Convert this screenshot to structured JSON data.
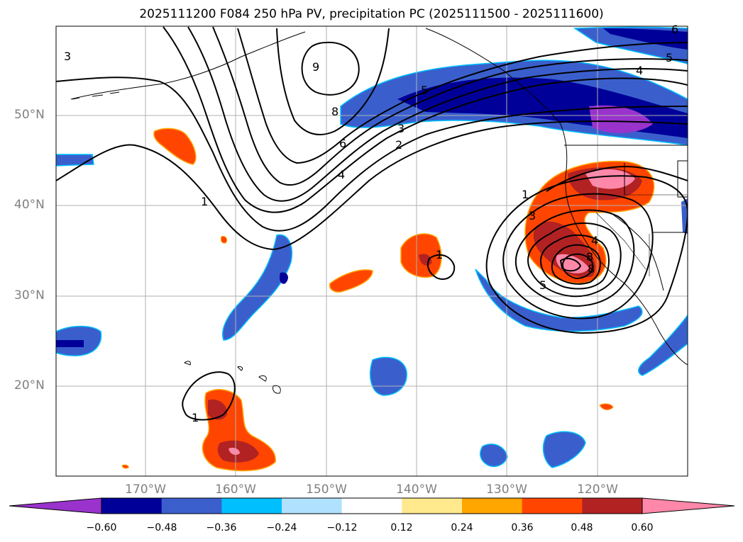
{
  "title": "2025111200 F084 250 hPa PV, precipitation PC (2025111500 - 2025111600)",
  "map": {
    "lat_labels": [
      "50°N",
      "40°N",
      "30°N",
      "20°N"
    ],
    "lon_labels": [
      "170°W",
      "160°W",
      "150°W",
      "140°W",
      "130°W",
      "120°W"
    ],
    "contour_labels": [
      "3",
      "9",
      "8",
      "6",
      "4",
      "3",
      "2",
      "1",
      "1",
      "1",
      "1",
      "5",
      "4",
      "5",
      "6",
      "3",
      "5",
      "8",
      "4",
      "8"
    ],
    "background_color": "#ffffff",
    "coastline_color": "#000000",
    "contour_color": "#000000",
    "grid_color": "#b0b0b0"
  },
  "colorbar": {
    "colors": [
      "#9933cc",
      "#000099",
      "#3a5fcd",
      "#00bfff",
      "#b0e2ff",
      "#ffffff",
      "#ffe98c",
      "#ffa500",
      "#ff4500",
      "#b22222",
      "#ff88aa"
    ],
    "tick_labels": [
      "−0.60",
      "−0.48",
      "−0.36",
      "−0.24",
      "−0.12",
      "0.12",
      "0.24",
      "0.36",
      "0.48",
      "0.60"
    ]
  }
}
